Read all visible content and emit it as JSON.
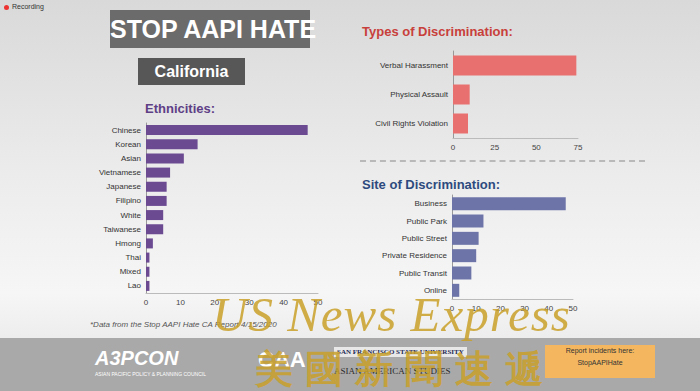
{
  "header": {
    "recording": "Recording",
    "title": "STOP AAPI HATE",
    "subtitle": "California"
  },
  "chart_data": [
    {
      "type": "bar",
      "title": "Ethnicities:",
      "orientation": "horizontal",
      "categories": [
        "Chinese",
        "Korean",
        "Asian",
        "Vietnamese",
        "Japanese",
        "Filipino",
        "White",
        "Taiwanese",
        "Hmong",
        "Thai",
        "Mixed",
        "Lao"
      ],
      "values": [
        47,
        15,
        11,
        7,
        6,
        6,
        5,
        5,
        2,
        1,
        1,
        1
      ],
      "color": "#6b4a92",
      "xlim": [
        0,
        50
      ],
      "xticks": [
        0,
        10,
        20,
        30,
        40,
        50
      ],
      "grid": false
    },
    {
      "type": "bar",
      "title": "Types of Discrimination:",
      "orientation": "horizontal",
      "categories": [
        "Verbal Harassment",
        "Physical Assault",
        "Civil Rights Violation"
      ],
      "values": [
        74,
        10,
        9
      ],
      "color": "#e8706e",
      "xlim": [
        0,
        75
      ],
      "xticks": [
        0,
        25,
        50,
        75
      ],
      "grid": false
    },
    {
      "type": "bar",
      "title": "Site of Discrimination:",
      "orientation": "horizontal",
      "categories": [
        "Business",
        "Public Park",
        "Public Street",
        "Private Residence",
        "Public Transit",
        "Online"
      ],
      "values": [
        47,
        13,
        11,
        10,
        8,
        3
      ],
      "color": "#6d75a8",
      "xlim": [
        0,
        50
      ],
      "xticks": [
        0,
        10,
        20,
        30,
        40,
        50
      ],
      "grid": false
    }
  ],
  "footnote": "*Data from the Stop AAPI Hate CA Report 4/15/2020",
  "footer": {
    "a3pcon": "A3PCON",
    "a3pcon_name": "ASIAN PACIFIC POLICY & PLANNING COUNCIL",
    "caa": "CAA",
    "university": "SAN FRANCISCO STATE UNIVERSITY",
    "department": "ASIAN AMERICAN STUDIES",
    "report": [
      "Report incidents here:",
      "StopAAPIHate"
    ]
  },
  "watermark": {
    "text": "US News Express",
    "subtext": "美國新聞速遞"
  }
}
